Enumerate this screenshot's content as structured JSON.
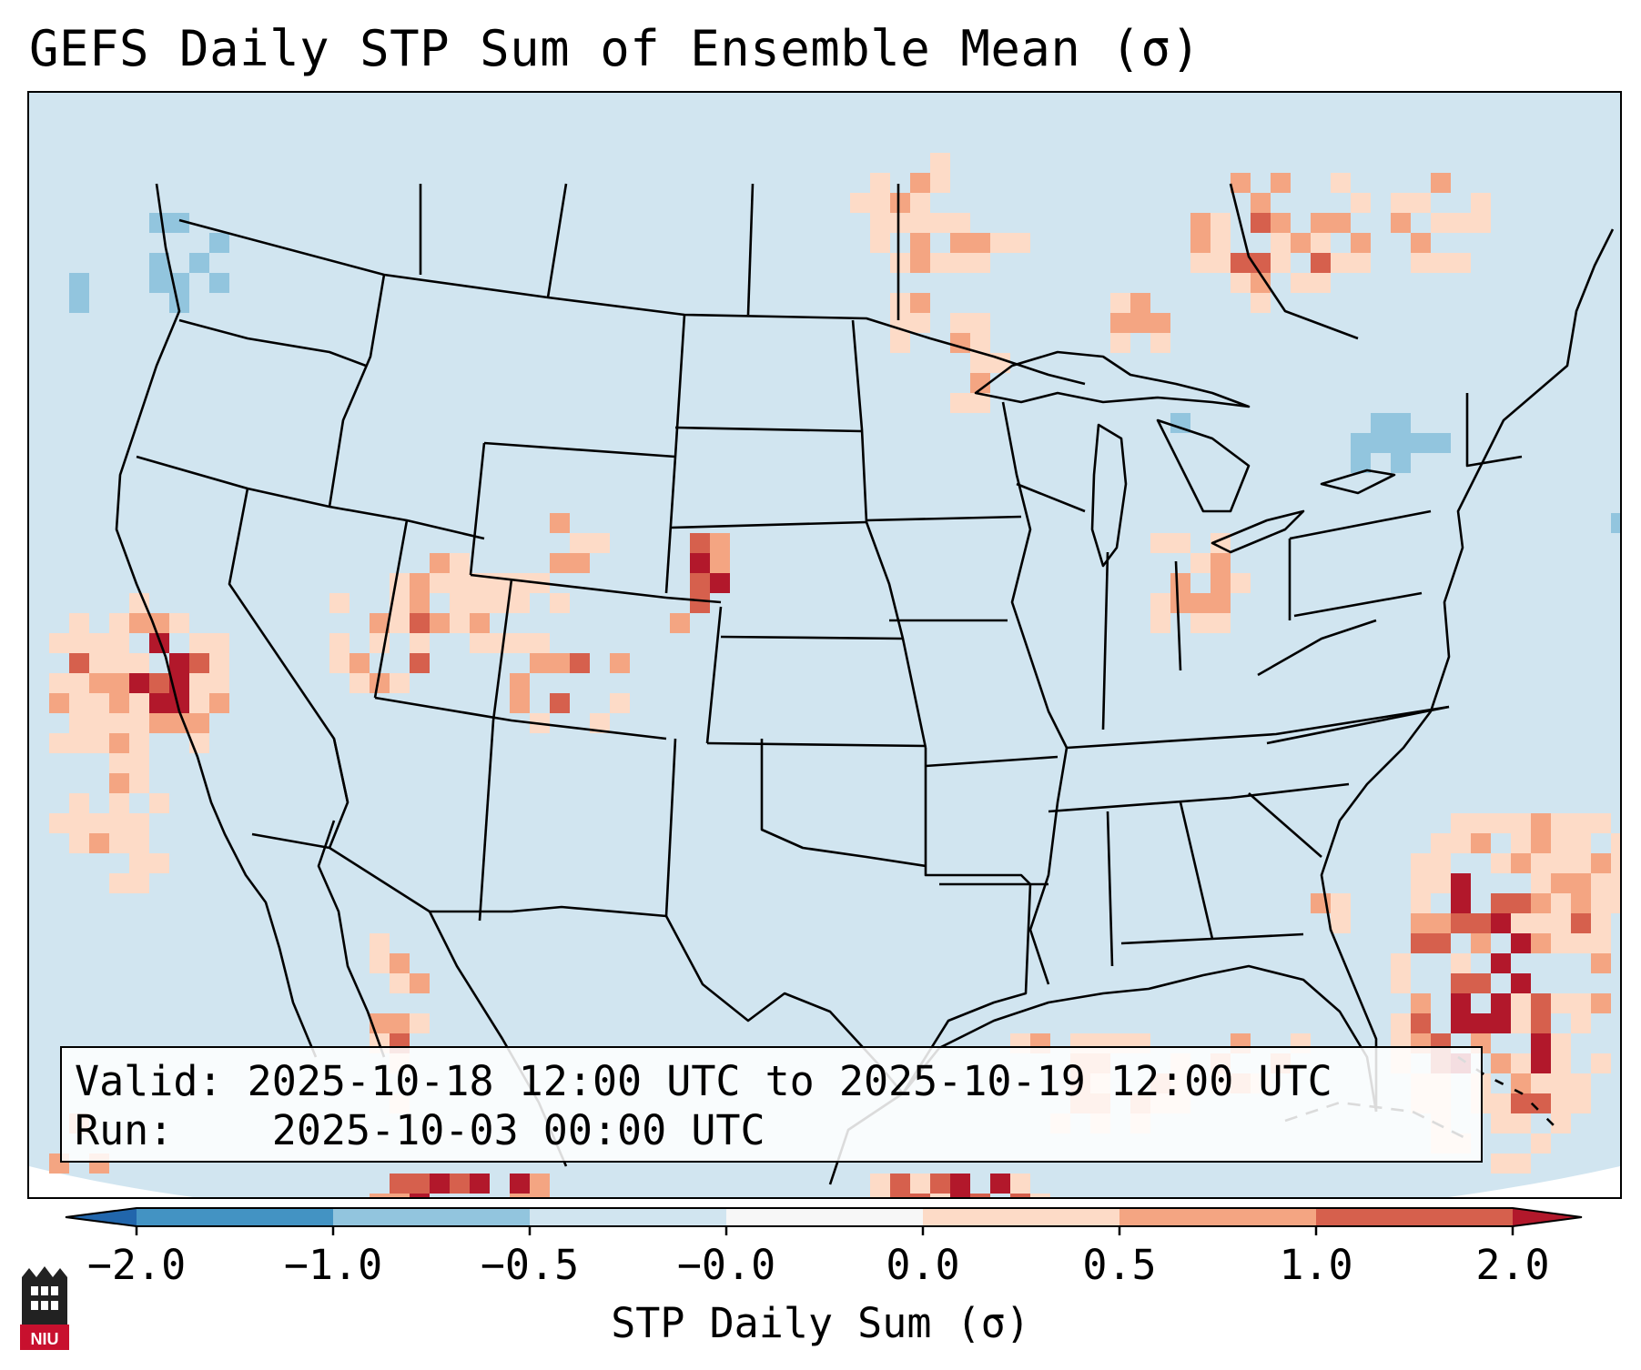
{
  "title": "GEFS Daily STP Sum of Ensemble Mean (σ)",
  "info": {
    "valid_label": "Valid:",
    "valid_value": "2025-10-18 12:00 UTC to 2025-10-19 12:00 UTC",
    "run_label": "Run:",
    "run_value": "2025-10-03 00:00 UTC"
  },
  "colorbar": {
    "label": "STP Daily Sum (σ)",
    "ticks": [
      "−2.0",
      "−1.0",
      "−0.5",
      "−0.0",
      "0.0",
      "0.5",
      "1.0",
      "2.0"
    ],
    "colors": [
      "#4393c3",
      "#92c5de",
      "#d1e5f0",
      "#f7f7f7",
      "#fddbc7",
      "#f4a582",
      "#d6604d"
    ],
    "extend_low_color": "#2166ac",
    "extend_high_color": "#b2182b"
  },
  "map": {
    "background_color": "#d1e5f0",
    "hotspot_levels": [
      "0.0 to 0.5",
      "0.5 to 1.0",
      "1.0 to 2.0",
      "> 2.0"
    ],
    "hotspot_colors": [
      "#fddbc7",
      "#f4a582",
      "#d6604d",
      "#b2182b"
    ],
    "negative_colors": [
      "#92c5de",
      "#4393c3"
    ]
  },
  "logo": {
    "text": "NIU"
  }
}
